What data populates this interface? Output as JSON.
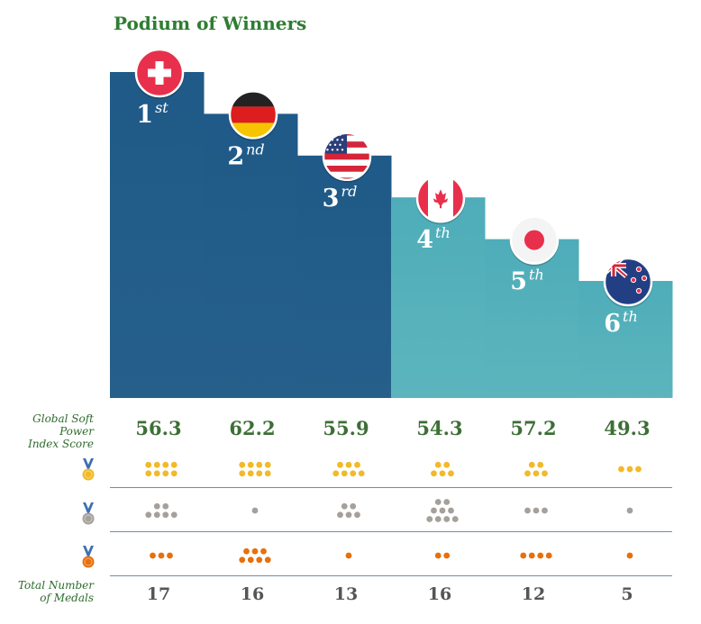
{
  "title": "Podium of Winners",
  "row_labels": {
    "score": [
      "Global Soft Power",
      "Index Score"
    ],
    "total": [
      "Total Number",
      "of Medals"
    ]
  },
  "icons": {
    "gold": "gold-medal-icon",
    "silver": "silver-medal-icon",
    "bronze": "bronze-medal-icon"
  },
  "colors": {
    "dark_bar": "#22608c",
    "light_bar": "#56b3bd",
    "gold": "#f2b928",
    "silver": "#a6a09b",
    "bronze": "#e5700d",
    "score_text": "#3d6f36"
  },
  "chart_data": {
    "type": "bar",
    "title": "Podium of Winners",
    "categories": [
      "Switzerland",
      "Germany",
      "United States",
      "Canada",
      "Japan",
      "New Zealand"
    ],
    "flags": [
      "switzerland",
      "germany",
      "usa",
      "canada",
      "japan",
      "new-zealand"
    ],
    "rank_numbers": [
      "1",
      "2",
      "3",
      "4",
      "5",
      "6"
    ],
    "rank_suffixes": [
      "st",
      "nd",
      "rd",
      "th",
      "th",
      "th"
    ],
    "scores": [
      "56.3",
      "62.2",
      "55.9",
      "54.3",
      "57.2",
      "49.3"
    ],
    "score_values": [
      56.3,
      62.2,
      55.9,
      54.3,
      57.2,
      49.3
    ],
    "gold": [
      8,
      8,
      7,
      5,
      5,
      3
    ],
    "silver": [
      6,
      1,
      5,
      9,
      3,
      1
    ],
    "bronze": [
      3,
      7,
      1,
      2,
      4,
      1
    ],
    "totals": [
      "17",
      "16",
      "13",
      "16",
      "12",
      "5"
    ],
    "podium_levels": [
      6,
      5,
      4,
      3,
      2,
      1
    ]
  }
}
